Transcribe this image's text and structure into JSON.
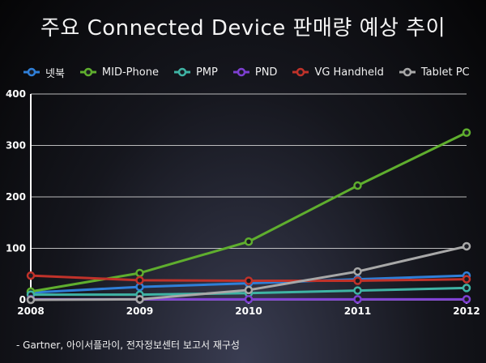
{
  "chart_data": {
    "type": "line",
    "title": "주요 Connected Device 판매량 예상 추이",
    "x": [
      "2008",
      "2009",
      "2010",
      "2011",
      "2012"
    ],
    "ylim": [
      0,
      400
    ],
    "yticks": [
      "0",
      "100",
      "200",
      "300",
      "400"
    ],
    "grid": true,
    "legend_position": "top",
    "series": [
      {
        "name": "넷북",
        "color": "#2f7fd8",
        "values": [
          14,
          25,
          32,
          40,
          47
        ]
      },
      {
        "name": "MID-Phone",
        "color": "#5fae2e",
        "values": [
          16,
          52,
          113,
          222,
          325
        ]
      },
      {
        "name": "PMP",
        "color": "#3fb3a4",
        "values": [
          10,
          10,
          13,
          18,
          23
        ]
      },
      {
        "name": "PND",
        "color": "#7d3fd1",
        "values": [
          1,
          1,
          1,
          1,
          1
        ]
      },
      {
        "name": "VG  Handheld",
        "color": "#c0322a",
        "values": [
          47,
          38,
          37,
          37,
          40
        ]
      },
      {
        "name": "Tablet PC",
        "color": "#a8a8a8",
        "values": [
          0,
          1,
          19,
          55,
          104
        ]
      }
    ]
  },
  "footnote": "- Gartner, 아이서플라이, 전자정보센터 보고서 재구성"
}
